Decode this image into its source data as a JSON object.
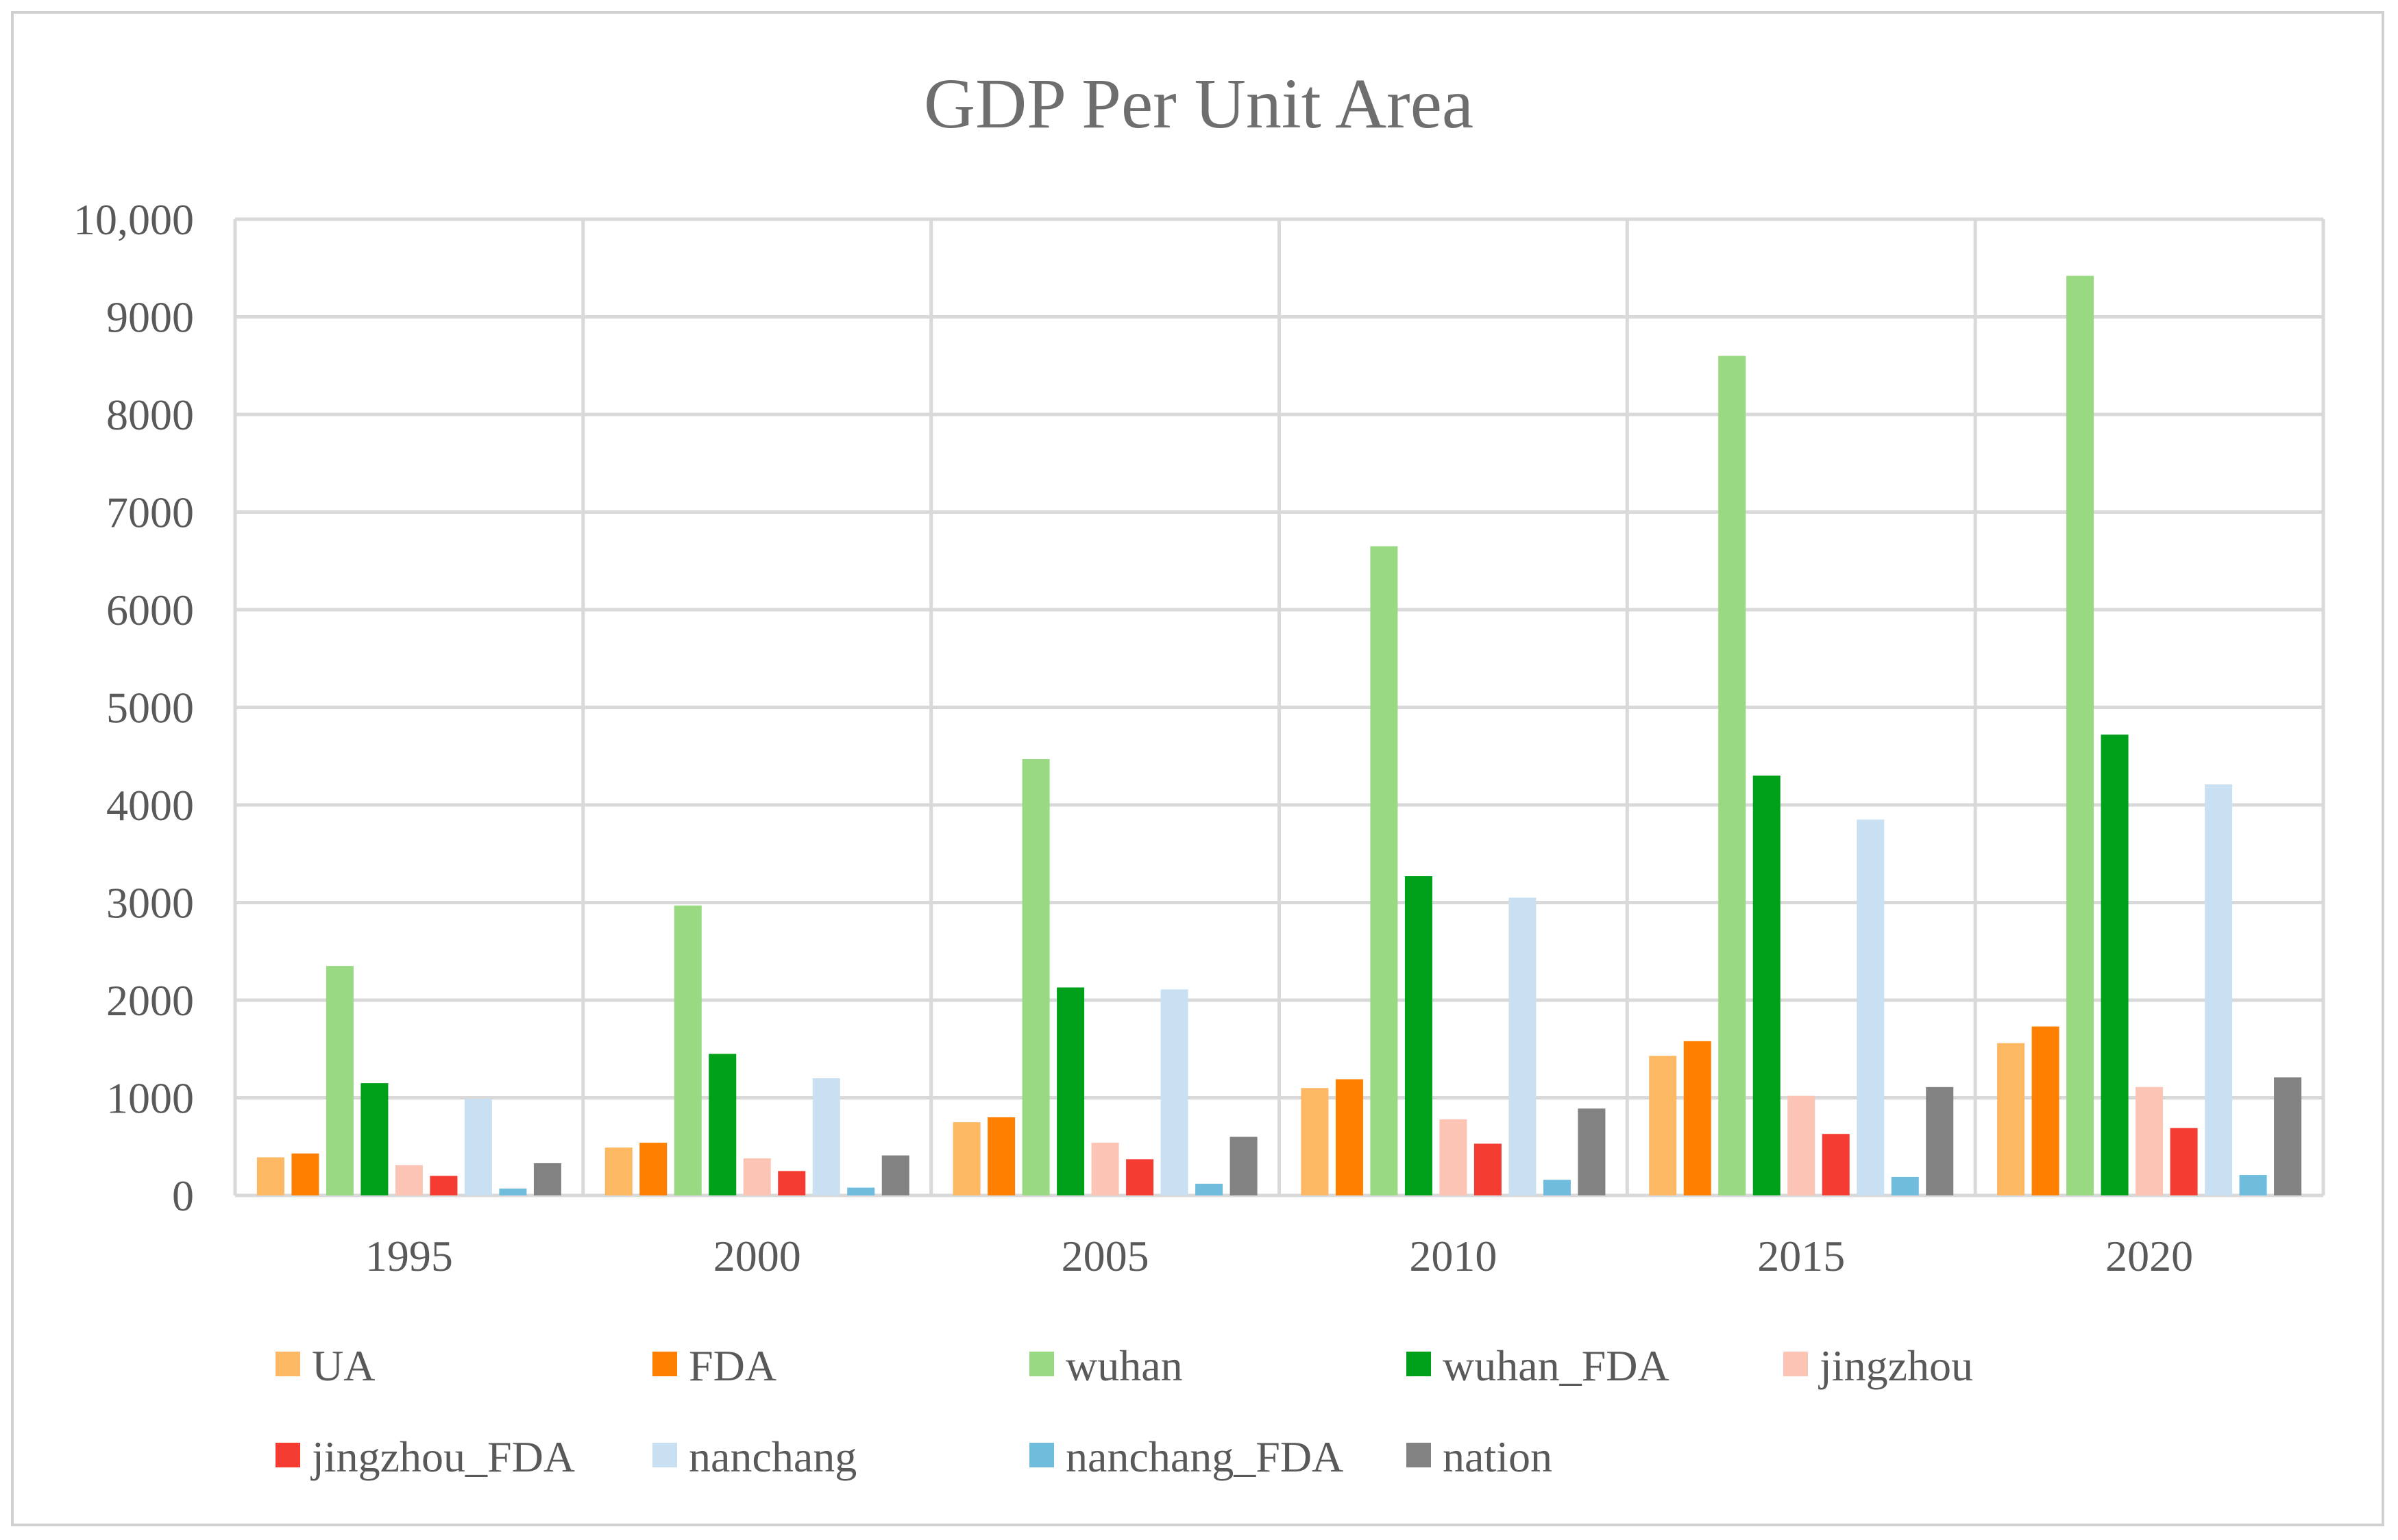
{
  "chart_data": {
    "type": "bar",
    "title": "GDP Per Unit Area",
    "xlabel": "",
    "ylabel": "",
    "categories": [
      "1995",
      "2000",
      "2005",
      "2010",
      "2015",
      "2020"
    ],
    "ylim": [
      0,
      10000
    ],
    "yticks": [
      0,
      1000,
      2000,
      3000,
      4000,
      5000,
      6000,
      7000,
      8000,
      9000,
      10000
    ],
    "ytick_labels": [
      "0",
      "1000",
      "2000",
      "3000",
      "4000",
      "5000",
      "6000",
      "7000",
      "8000",
      "9000",
      "10,000"
    ],
    "grid": true,
    "legend_position": "bottom",
    "series": [
      {
        "name": "UA",
        "color": "#fdb863",
        "values": [
          390,
          490,
          750,
          1100,
          1430,
          1560
        ]
      },
      {
        "name": "FDA",
        "color": "#ff7f00",
        "values": [
          430,
          540,
          800,
          1190,
          1580,
          1730
        ]
      },
      {
        "name": "wuhan",
        "color": "#98d982",
        "values": [
          2350,
          2970,
          4470,
          6650,
          8600,
          9420
        ]
      },
      {
        "name": "wuhan_FDA",
        "color": "#00a11a",
        "values": [
          1150,
          1450,
          2130,
          3270,
          4300,
          4720
        ]
      },
      {
        "name": "jingzhou",
        "color": "#fcc4b4",
        "values": [
          310,
          380,
          540,
          780,
          1020,
          1110
        ]
      },
      {
        "name": "jingzhou_FDA",
        "color": "#f43c32",
        "values": [
          200,
          250,
          370,
          530,
          630,
          690
        ]
      },
      {
        "name": "nanchang",
        "color": "#c9e0f2",
        "values": [
          990,
          1200,
          2110,
          3050,
          3850,
          4210
        ]
      },
      {
        "name": "nanchang_FDA",
        "color": "#6fbcdc",
        "values": [
          70,
          80,
          120,
          160,
          190,
          210
        ]
      },
      {
        "name": "nation",
        "color": "#828282",
        "values": [
          330,
          410,
          600,
          890,
          1110,
          1210
        ]
      }
    ]
  }
}
